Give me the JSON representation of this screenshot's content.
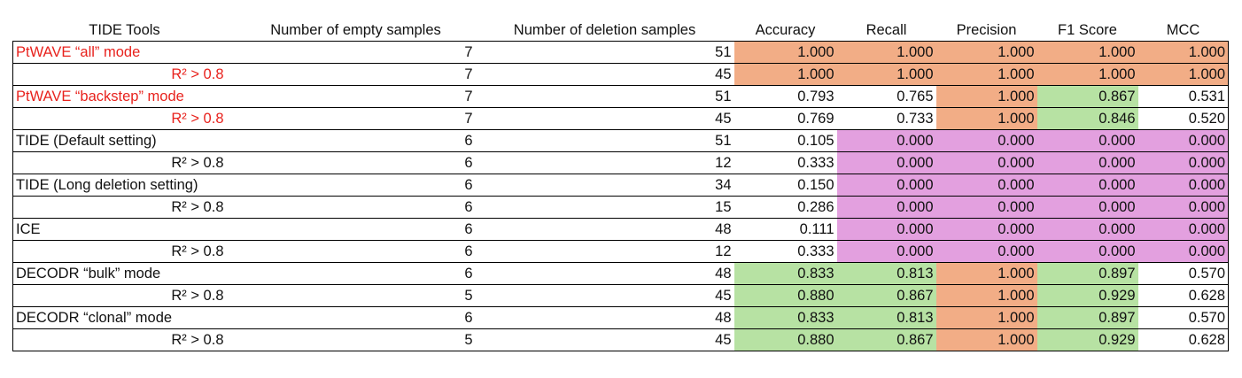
{
  "table": {
    "headers": [
      "TIDE Tools",
      "Number of empty samples",
      "Number of deletion samples",
      "Accuracy",
      "Recall",
      "Precision",
      "F1 Score",
      "MCC"
    ],
    "colors": {
      "orange": "#f2ad86",
      "green": "#b7e2a3",
      "pink": "#e3a0df",
      "red_text": "#e8221d"
    },
    "rows": [
      {
        "tool": "PtWAVE “all” mode",
        "sub": false,
        "red": true,
        "empty": "7",
        "deletion": "51",
        "metrics": [
          {
            "v": "1.000",
            "c": "orange"
          },
          {
            "v": "1.000",
            "c": "orange"
          },
          {
            "v": "1.000",
            "c": "orange"
          },
          {
            "v": "1.000",
            "c": "orange"
          },
          {
            "v": "1.000",
            "c": "orange"
          }
        ]
      },
      {
        "tool": "R² > 0.8",
        "sub": true,
        "red": true,
        "empty": "7",
        "deletion": "45",
        "metrics": [
          {
            "v": "1.000",
            "c": "orange"
          },
          {
            "v": "1.000",
            "c": "orange"
          },
          {
            "v": "1.000",
            "c": "orange"
          },
          {
            "v": "1.000",
            "c": "orange"
          },
          {
            "v": "1.000",
            "c": "orange"
          }
        ]
      },
      {
        "tool": "PtWAVE “backstep” mode",
        "sub": false,
        "red": true,
        "empty": "7",
        "deletion": "51",
        "metrics": [
          {
            "v": "0.793",
            "c": "white"
          },
          {
            "v": "0.765",
            "c": "white"
          },
          {
            "v": "1.000",
            "c": "orange"
          },
          {
            "v": "0.867",
            "c": "green"
          },
          {
            "v": "0.531",
            "c": "white"
          }
        ]
      },
      {
        "tool": "R² > 0.8",
        "sub": true,
        "red": true,
        "empty": "7",
        "deletion": "45",
        "metrics": [
          {
            "v": "0.769",
            "c": "white"
          },
          {
            "v": "0.733",
            "c": "white"
          },
          {
            "v": "1.000",
            "c": "orange"
          },
          {
            "v": "0.846",
            "c": "green"
          },
          {
            "v": "0.520",
            "c": "white"
          }
        ]
      },
      {
        "tool": "TIDE (Default setting)",
        "sub": false,
        "red": false,
        "empty": "6",
        "deletion": "51",
        "metrics": [
          {
            "v": "0.105",
            "c": "white"
          },
          {
            "v": "0.000",
            "c": "pink"
          },
          {
            "v": "0.000",
            "c": "pink"
          },
          {
            "v": "0.000",
            "c": "pink"
          },
          {
            "v": "0.000",
            "c": "pink"
          }
        ]
      },
      {
        "tool": "R² > 0.8",
        "sub": true,
        "red": false,
        "empty": "6",
        "deletion": "12",
        "metrics": [
          {
            "v": "0.333",
            "c": "white"
          },
          {
            "v": "0.000",
            "c": "pink"
          },
          {
            "v": "0.000",
            "c": "pink"
          },
          {
            "v": "0.000",
            "c": "pink"
          },
          {
            "v": "0.000",
            "c": "pink"
          }
        ]
      },
      {
        "tool": "TIDE (Long deletion setting)",
        "sub": false,
        "red": false,
        "empty": "6",
        "deletion": "34",
        "metrics": [
          {
            "v": "0.150",
            "c": "white"
          },
          {
            "v": "0.000",
            "c": "pink"
          },
          {
            "v": "0.000",
            "c": "pink"
          },
          {
            "v": "0.000",
            "c": "pink"
          },
          {
            "v": "0.000",
            "c": "pink"
          }
        ]
      },
      {
        "tool": "R² > 0.8",
        "sub": true,
        "red": false,
        "empty": "6",
        "deletion": "15",
        "metrics": [
          {
            "v": "0.286",
            "c": "white"
          },
          {
            "v": "0.000",
            "c": "pink"
          },
          {
            "v": "0.000",
            "c": "pink"
          },
          {
            "v": "0.000",
            "c": "pink"
          },
          {
            "v": "0.000",
            "c": "pink"
          }
        ]
      },
      {
        "tool": "ICE",
        "sub": false,
        "red": false,
        "empty": "6",
        "deletion": "48",
        "metrics": [
          {
            "v": "0.111",
            "c": "white"
          },
          {
            "v": "0.000",
            "c": "pink"
          },
          {
            "v": "0.000",
            "c": "pink"
          },
          {
            "v": "0.000",
            "c": "pink"
          },
          {
            "v": "0.000",
            "c": "pink"
          }
        ]
      },
      {
        "tool": "R² > 0.8",
        "sub": true,
        "red": false,
        "empty": "6",
        "deletion": "12",
        "metrics": [
          {
            "v": "0.333",
            "c": "white"
          },
          {
            "v": "0.000",
            "c": "pink"
          },
          {
            "v": "0.000",
            "c": "pink"
          },
          {
            "v": "0.000",
            "c": "pink"
          },
          {
            "v": "0.000",
            "c": "pink"
          }
        ]
      },
      {
        "tool": "DECODR “bulk” mode",
        "sub": false,
        "red": false,
        "empty": "6",
        "deletion": "48",
        "metrics": [
          {
            "v": "0.833",
            "c": "green"
          },
          {
            "v": "0.813",
            "c": "green"
          },
          {
            "v": "1.000",
            "c": "orange"
          },
          {
            "v": "0.897",
            "c": "green"
          },
          {
            "v": "0.570",
            "c": "white"
          }
        ]
      },
      {
        "tool": "R² > 0.8",
        "sub": true,
        "red": false,
        "empty": "5",
        "deletion": "45",
        "metrics": [
          {
            "v": "0.880",
            "c": "green"
          },
          {
            "v": "0.867",
            "c": "green"
          },
          {
            "v": "1.000",
            "c": "orange"
          },
          {
            "v": "0.929",
            "c": "green"
          },
          {
            "v": "0.628",
            "c": "white"
          }
        ]
      },
      {
        "tool": "DECODR “clonal” mode",
        "sub": false,
        "red": false,
        "empty": "6",
        "deletion": "48",
        "metrics": [
          {
            "v": "0.833",
            "c": "green"
          },
          {
            "v": "0.813",
            "c": "green"
          },
          {
            "v": "1.000",
            "c": "orange"
          },
          {
            "v": "0.897",
            "c": "green"
          },
          {
            "v": "0.570",
            "c": "white"
          }
        ]
      },
      {
        "tool": "R² > 0.8",
        "sub": true,
        "red": false,
        "empty": "5",
        "deletion": "45",
        "metrics": [
          {
            "v": "0.880",
            "c": "green"
          },
          {
            "v": "0.867",
            "c": "green"
          },
          {
            "v": "1.000",
            "c": "orange"
          },
          {
            "v": "0.929",
            "c": "green"
          },
          {
            "v": "0.628",
            "c": "white"
          }
        ]
      }
    ]
  }
}
